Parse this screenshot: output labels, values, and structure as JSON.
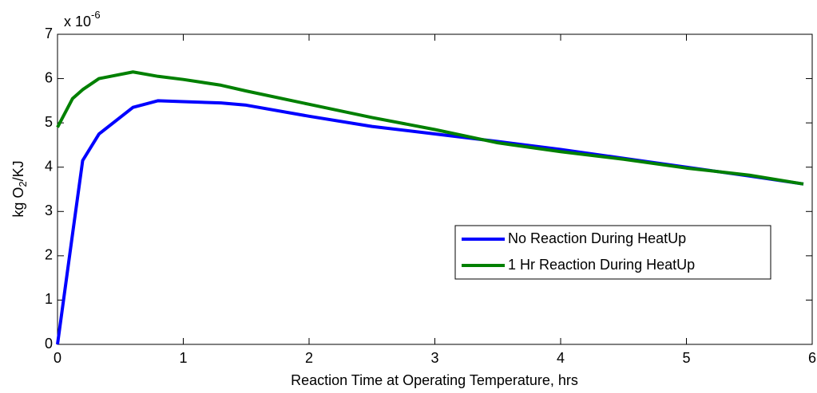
{
  "chart_data": {
    "type": "line",
    "xlabel": "Reaction Time at Operating Temperature, hrs",
    "ylabel": [
      "kg O",
      "2",
      "/KJ"
    ],
    "y_multiplier": [
      "x 10",
      "-6"
    ],
    "x": [
      0,
      0.12,
      0.2,
      0.33,
      0.6,
      0.8,
      1,
      1.3,
      1.5,
      2,
      2.5,
      3,
      3.5,
      4,
      4.5,
      5,
      5.5,
      5.93
    ],
    "series": [
      {
        "name": "No Reaction During HeatUp",
        "color": "#0000ff",
        "values": [
          0,
          2.5,
          4.15,
          4.75,
          5.35,
          5.5,
          5.48,
          5.45,
          5.4,
          5.15,
          4.92,
          4.75,
          4.58,
          4.4,
          4.2,
          4.0,
          3.8,
          3.62
        ]
      },
      {
        "name": "1 Hr Reaction During HeatUp",
        "color": "#008000",
        "values": [
          4.9,
          5.55,
          5.75,
          6.0,
          6.15,
          6.05,
          5.98,
          5.85,
          5.72,
          5.42,
          5.12,
          4.85,
          4.55,
          4.35,
          4.18,
          3.98,
          3.82,
          3.62
        ]
      }
    ],
    "xlim": [
      0,
      6
    ],
    "xticks": [
      0,
      1,
      2,
      3,
      4,
      5,
      6
    ],
    "ylim": [
      0,
      7
    ],
    "yticks": [
      0,
      1,
      2,
      3,
      4,
      5,
      6,
      7
    ],
    "grid": false,
    "legend": "lower right"
  }
}
